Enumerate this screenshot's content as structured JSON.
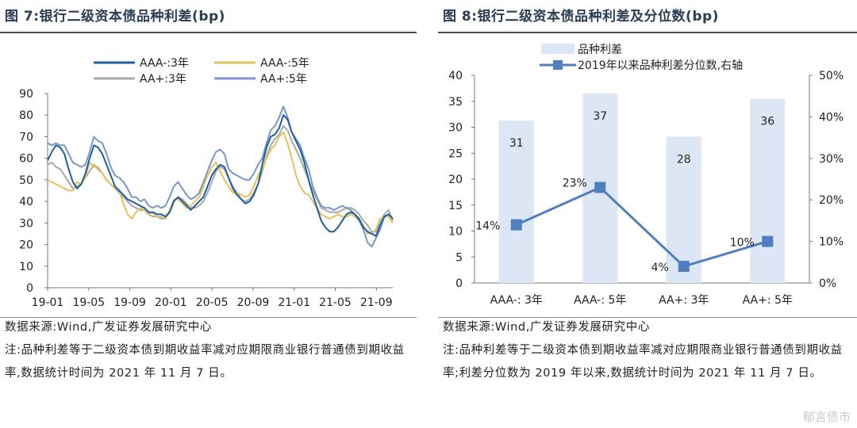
{
  "left": {
    "title": "图 7:银行二级资本债品种利差(bp)",
    "source": "数据来源:Wind,广发证券发展研究中心",
    "note": "注:品种利差等于二级资本债到期收益率减对应期限商业银行普通债到期收益率,数据统计时间为 2021 年 11 月 7 日。"
  },
  "right": {
    "title": "图 8:银行二级资本债品种利差及分位数(bp)",
    "source": "数据来源:Wind,广发证券发展研究中心",
    "note": "注:品种利差等于二级资本债到期收益率减对应期限商业银行普通债到期收益率;利差分位数为 2019 年以来,数据统计时间为 2021 年 11 月 7 日。"
  },
  "watermark": "郁言债市",
  "chart_data": [
    {
      "type": "line",
      "ylim": [
        0,
        90
      ],
      "yticks": [
        "0",
        "10",
        "20",
        "30",
        "40",
        "50",
        "60",
        "70",
        "80",
        "90"
      ],
      "xticks": [
        "19-01",
        "19-05",
        "19-09",
        "20-01",
        "20-05",
        "20-09",
        "21-01",
        "21-05",
        "21-09"
      ],
      "legend": [
        "AAA-:3年",
        "AAA-:5年",
        "AA+:3年",
        "AA+:5年"
      ],
      "colors": [
        "#1f5fa0",
        "#e3c25a",
        "#a9a9a9",
        "#7b96c8"
      ],
      "series": [
        {
          "name": "AAA-:3年",
          "values": [
            59,
            63,
            66,
            65,
            62,
            55,
            49,
            46,
            48,
            53,
            60,
            66,
            65,
            62,
            57,
            52,
            47,
            45,
            43,
            41,
            40,
            39,
            38,
            37,
            35,
            35,
            34,
            34,
            33,
            35,
            40,
            42,
            40,
            38,
            36,
            38,
            40,
            42,
            47,
            52,
            55,
            57,
            56,
            51,
            46,
            43,
            41,
            39,
            40,
            43,
            48,
            57,
            65,
            70,
            71,
            74,
            80,
            78,
            72,
            68,
            64,
            58,
            50,
            43,
            37,
            31,
            28,
            26,
            26,
            28,
            31,
            34,
            35,
            34,
            32,
            28,
            26,
            25,
            24,
            29,
            33,
            34,
            32
          ]
        },
        {
          "name": "AAA-:5年",
          "values": [
            50,
            49,
            48,
            47,
            46,
            45,
            45,
            49,
            48,
            51,
            58,
            56,
            56,
            53,
            50,
            48,
            46,
            45,
            39,
            34,
            32,
            35,
            37,
            36,
            34,
            35,
            33,
            33,
            32,
            36,
            41,
            41,
            39,
            37,
            38,
            40,
            42,
            47,
            52,
            56,
            58,
            54,
            50,
            47,
            44,
            44,
            43,
            42,
            43,
            47,
            52,
            55,
            60,
            64,
            66,
            70,
            72,
            67,
            60,
            52,
            47,
            44,
            43,
            40,
            37,
            34,
            33,
            32,
            33,
            34,
            33,
            33,
            34,
            33,
            31,
            29,
            25,
            25,
            27,
            32,
            33,
            33,
            30
          ]
        },
        {
          "name": "AA+:3年",
          "values": [
            57,
            58,
            56,
            55,
            52,
            49,
            46,
            47,
            48,
            51,
            54,
            57,
            55,
            53,
            50,
            48,
            46,
            44,
            42,
            40,
            38,
            37,
            36,
            36,
            34,
            33,
            33,
            32,
            32,
            35,
            40,
            42,
            41,
            39,
            37,
            37,
            38,
            40,
            44,
            49,
            54,
            56,
            55,
            51,
            47,
            44,
            41,
            40,
            41,
            44,
            48,
            54,
            61,
            66,
            69,
            71,
            75,
            73,
            68,
            64,
            60,
            55,
            50,
            45,
            41,
            37,
            36,
            35,
            35,
            35,
            36,
            37,
            37,
            36,
            34,
            31,
            29,
            26,
            26,
            31,
            34,
            36,
            31
          ]
        },
        {
          "name": "AA+:5年",
          "values": [
            67,
            66,
            67,
            66,
            66,
            62,
            58,
            57,
            56,
            57,
            63,
            70,
            68,
            67,
            62,
            56,
            52,
            51,
            49,
            46,
            42,
            42,
            40,
            41,
            38,
            37,
            38,
            37,
            38,
            42,
            47,
            49,
            46,
            43,
            41,
            42,
            44,
            49,
            54,
            59,
            63,
            64,
            62,
            55,
            53,
            52,
            51,
            50,
            50,
            53,
            57,
            60,
            67,
            73,
            75,
            79,
            84,
            79,
            72,
            69,
            66,
            60,
            55,
            47,
            42,
            38,
            37,
            37,
            36,
            37,
            38,
            37,
            36,
            34,
            31,
            27,
            21,
            19,
            23,
            27,
            33,
            34,
            32
          ]
        }
      ]
    },
    {
      "type": "bar+line",
      "categories": [
        "AAA-: 3年",
        "AAA-: 5年",
        "AA+: 3年",
        "AA+: 5年"
      ],
      "bar_values": [
        31.3,
        36.5,
        28.2,
        35.5
      ],
      "bar_labels": [
        "31",
        "37",
        "28",
        "36"
      ],
      "line_values": [
        14,
        23,
        4,
        10
      ],
      "line_labels": [
        "14%",
        "23%",
        "4%",
        "10%"
      ],
      "ylim_left": [
        0,
        40
      ],
      "yticks_left": [
        "0",
        "5",
        "10",
        "15",
        "20",
        "25",
        "30",
        "35",
        "40"
      ],
      "ylim_right": [
        0,
        50
      ],
      "yticks_right": [
        "0%",
        "10%",
        "20%",
        "30%",
        "40%",
        "50%"
      ],
      "legend": [
        "品种利差",
        "2019年以来品种利差分位数,右轴"
      ],
      "bar_color": "#dde6f4",
      "line_color": "#4f7fc0"
    }
  ]
}
